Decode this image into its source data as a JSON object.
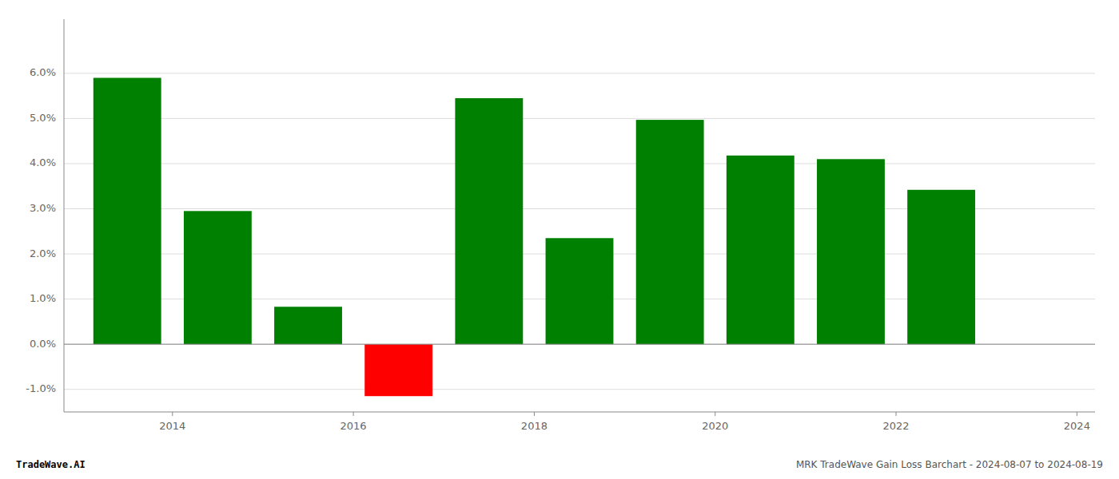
{
  "chart_data": {
    "type": "bar",
    "x": [
      2013.5,
      2014.5,
      2015.5,
      2016.5,
      2017.5,
      2018.5,
      2019.5,
      2020.5,
      2021.5,
      2022.5
    ],
    "values": [
      0.059,
      0.0295,
      0.0083,
      -0.0115,
      0.0545,
      0.0235,
      0.0497,
      0.0418,
      0.041,
      0.0342
    ],
    "colors": [
      "#008000",
      "#008000",
      "#008000",
      "#ff0000",
      "#008000",
      "#008000",
      "#008000",
      "#008000",
      "#008000",
      "#008000"
    ],
    "xlim": [
      2012.8,
      2024.2
    ],
    "xticks": [
      2014,
      2016,
      2018,
      2020,
      2022,
      2024
    ],
    "ylim": [
      -0.015,
      0.072
    ],
    "yticks": [
      {
        "value": -0.01,
        "label": "-1.0%"
      },
      {
        "value": 0.0,
        "label": "0.0%"
      },
      {
        "value": 0.01,
        "label": "1.0%"
      },
      {
        "value": 0.02,
        "label": "2.0%"
      },
      {
        "value": 0.03,
        "label": "3.0%"
      },
      {
        "value": 0.04,
        "label": "4.0%"
      },
      {
        "value": 0.05,
        "label": "5.0%"
      },
      {
        "value": 0.06,
        "label": "6.0%"
      }
    ],
    "grid": true,
    "annotations": [
      "TradeWave.AI",
      "MRK TradeWave Gain Loss Barchart - 2024-08-07 to 2024-08-19"
    ]
  }
}
